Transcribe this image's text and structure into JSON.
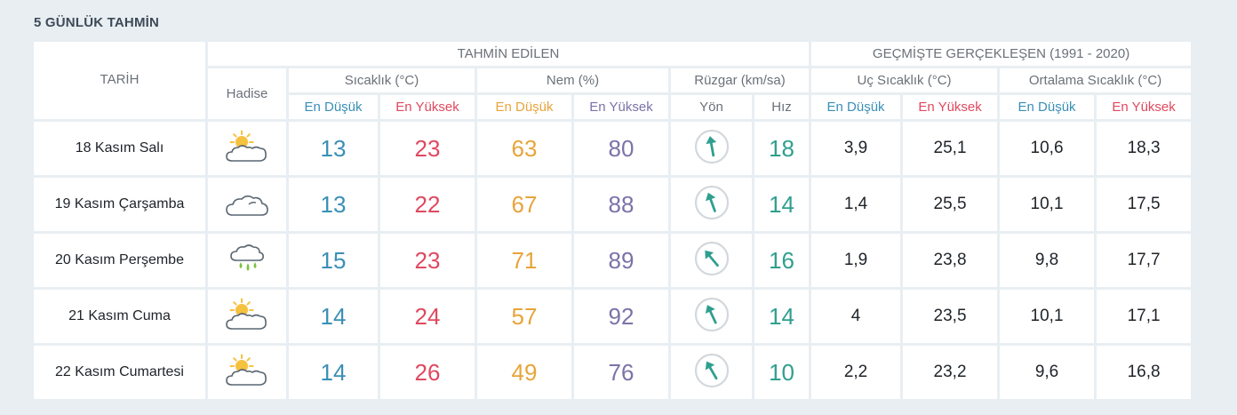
{
  "page": {
    "title": "5 GÜNLÜK TAHMİN"
  },
  "headers": {
    "tarih": "TARİH",
    "forecast_group": "TAHMİN EDİLEN",
    "history_group": "GEÇMİŞTE GERÇEKLEŞEN (1991 - 2020)",
    "hadise": "Hadise",
    "temp": "Sıcaklık (°C)",
    "humidity": "Nem (%)",
    "wind": "Rüzgar (km/sa)",
    "extreme_temp": "Uç Sıcaklık (°C)",
    "avg_temp": "Ortalama Sıcaklık (°C)",
    "low": "En Düşük",
    "high": "En Yüksek",
    "direction": "Yön",
    "speed": "Hız"
  },
  "colors": {
    "low": "#3a8fb7",
    "high": "#e0485f",
    "humidity_low": "#e8a43a",
    "humidity_high": "#7c72a8",
    "wind": "#2f9f8f",
    "sun": "#f5c13f",
    "cloud_outline": "#5a6672",
    "rain": "#7cc142"
  },
  "rows": [
    {
      "date": "18 Kasım Salı",
      "icon": "partly-cloudy-icon",
      "temp_low": "13",
      "temp_high": "23",
      "hum_low": "63",
      "hum_high": "80",
      "wind_dir_deg": 350,
      "wind_speed": "18",
      "ext_low": "3,9",
      "ext_high": "25,1",
      "avg_low": "10,6",
      "avg_high": "18,3"
    },
    {
      "date": "19 Kasım Çarşamba",
      "icon": "cloudy-icon",
      "temp_low": "13",
      "temp_high": "22",
      "hum_low": "67",
      "hum_high": "88",
      "wind_dir_deg": 340,
      "wind_speed": "14",
      "ext_low": "1,4",
      "ext_high": "25,5",
      "avg_low": "10,1",
      "avg_high": "17,5"
    },
    {
      "date": "20 Kasım Perşembe",
      "icon": "rain-icon",
      "temp_low": "15",
      "temp_high": "23",
      "hum_low": "71",
      "hum_high": "89",
      "wind_dir_deg": 320,
      "wind_speed": "16",
      "ext_low": "1,9",
      "ext_high": "23,8",
      "avg_low": "9,8",
      "avg_high": "17,7"
    },
    {
      "date": "21 Kasım Cuma",
      "icon": "partly-cloudy-icon",
      "temp_low": "14",
      "temp_high": "24",
      "hum_low": "57",
      "hum_high": "92",
      "wind_dir_deg": 335,
      "wind_speed": "14",
      "ext_low": "4",
      "ext_high": "23,5",
      "avg_low": "10,1",
      "avg_high": "17,1"
    },
    {
      "date": "22 Kasım Cumartesi",
      "icon": "partly-cloudy-icon",
      "temp_low": "14",
      "temp_high": "26",
      "hum_low": "49",
      "hum_high": "76",
      "wind_dir_deg": 330,
      "wind_speed": "10",
      "ext_low": "2,2",
      "ext_high": "23,2",
      "avg_low": "9,6",
      "avg_high": "16,8"
    }
  ]
}
